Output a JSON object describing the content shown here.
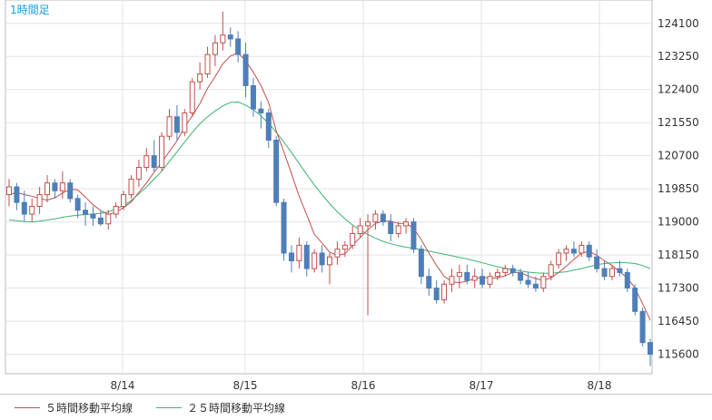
{
  "chart_data": {
    "type": "candlestick",
    "title": "1時間足",
    "x_labels": [
      "8/14",
      "8/15",
      "8/16",
      "8/17",
      "8/18"
    ],
    "y_ticks": [
      124100,
      123250,
      122400,
      121550,
      120700,
      119850,
      119000,
      118150,
      117300,
      116450,
      115600
    ],
    "ylim": [
      115100,
      124700
    ],
    "grid": true,
    "series": [
      {
        "name": "５時間移動平均線",
        "color": "#c0504d"
      },
      {
        "name": "２５時間移動平均線",
        "color": "#3cb371"
      }
    ],
    "colors": {
      "up": "#ffffff",
      "up_border": "#c0504d",
      "down": "#4f7fb8",
      "down_border": "#4f7fb8"
    },
    "candles": [
      [
        119700,
        120100,
        119400,
        119900
      ],
      [
        119900,
        120000,
        119300,
        119500
      ],
      [
        119500,
        119800,
        119000,
        119200
      ],
      [
        119200,
        119600,
        119000,
        119400
      ],
      [
        119400,
        119900,
        119200,
        119700
      ],
      [
        119700,
        120200,
        119500,
        120000
      ],
      [
        120000,
        120100,
        119600,
        119800
      ],
      [
        119800,
        120300,
        119600,
        120000
      ],
      [
        120000,
        120100,
        119500,
        119600
      ],
      [
        119600,
        119700,
        119100,
        119300
      ],
      [
        119300,
        119500,
        118900,
        119200
      ],
      [
        119200,
        119400,
        118900,
        119100
      ],
      [
        119100,
        119300,
        118900,
        118950
      ],
      [
        118950,
        119300,
        118800,
        119200
      ],
      [
        119200,
        119500,
        119100,
        119400
      ],
      [
        119400,
        119800,
        119300,
        119700
      ],
      [
        119700,
        120200,
        119600,
        120100
      ],
      [
        120100,
        120600,
        119900,
        120400
      ],
      [
        120400,
        120900,
        120300,
        120700
      ],
      [
        120700,
        121100,
        120300,
        120400
      ],
      [
        120400,
        121300,
        120300,
        121200
      ],
      [
        121200,
        121900,
        121100,
        121700
      ],
      [
        121700,
        122000,
        121100,
        121300
      ],
      [
        121300,
        121900,
        121200,
        121800
      ],
      [
        121800,
        122700,
        121700,
        122600
      ],
      [
        122600,
        123100,
        122400,
        122800
      ],
      [
        122800,
        123500,
        122700,
        123300
      ],
      [
        123300,
        123800,
        123000,
        123600
      ],
      [
        123600,
        124400,
        123400,
        123800
      ],
      [
        123800,
        124000,
        123500,
        123700
      ],
      [
        123700,
        123900,
        123100,
        123300
      ],
      [
        123300,
        123600,
        122200,
        122500
      ],
      [
        122500,
        122700,
        121700,
        121900
      ],
      [
        121900,
        122100,
        121400,
        121800
      ],
      [
        121800,
        121900,
        120900,
        121100
      ],
      [
        121100,
        121200,
        119400,
        119500
      ],
      [
        119500,
        119600,
        118000,
        118200
      ],
      [
        118200,
        118400,
        117700,
        118000
      ],
      [
        118000,
        118600,
        117800,
        118400
      ],
      [
        118400,
        118500,
        117600,
        117800
      ],
      [
        117800,
        118300,
        117700,
        118200
      ],
      [
        118200,
        118400,
        117700,
        117900
      ],
      [
        117900,
        118200,
        117400,
        118100
      ],
      [
        118100,
        118500,
        117900,
        118300
      ],
      [
        118300,
        118500,
        118100,
        118400
      ],
      [
        118400,
        118900,
        118300,
        118700
      ],
      [
        118700,
        119100,
        118600,
        118900
      ],
      [
        118900,
        119200,
        116600,
        119000
      ],
      [
        119000,
        119300,
        118800,
        119200
      ],
      [
        119200,
        119300,
        118900,
        119000
      ],
      [
        119000,
        119200,
        118500,
        118700
      ],
      [
        118700,
        119000,
        118600,
        118900
      ],
      [
        118900,
        119100,
        118700,
        119000
      ],
      [
        119000,
        119100,
        118200,
        118300
      ],
      [
        118300,
        118400,
        117400,
        117600
      ],
      [
        117600,
        117800,
        117100,
        117300
      ],
      [
        117300,
        117500,
        116900,
        117000
      ],
      [
        117000,
        117500,
        116900,
        117400
      ],
      [
        117400,
        117800,
        117200,
        117600
      ],
      [
        117600,
        117900,
        117300,
        117700
      ],
      [
        117700,
        117900,
        117400,
        117500
      ],
      [
        117500,
        117800,
        117300,
        117600
      ],
      [
        117600,
        117800,
        117300,
        117400
      ],
      [
        117400,
        117700,
        117300,
        117600
      ],
      [
        117600,
        117800,
        117500,
        117700
      ],
      [
        117700,
        117900,
        117600,
        117800
      ],
      [
        117800,
        117900,
        117600,
        117700
      ],
      [
        117700,
        117800,
        117400,
        117500
      ],
      [
        117500,
        117700,
        117300,
        117400
      ],
      [
        117400,
        117600,
        117200,
        117300
      ],
      [
        117300,
        117700,
        117200,
        117600
      ],
      [
        117600,
        118000,
        117500,
        117900
      ],
      [
        117900,
        118300,
        117800,
        118200
      ],
      [
        118200,
        118400,
        118000,
        118300
      ],
      [
        118300,
        118500,
        118100,
        118200
      ],
      [
        118200,
        118500,
        118100,
        118400
      ],
      [
        118400,
        118500,
        118000,
        118100
      ],
      [
        118100,
        118300,
        117700,
        117800
      ],
      [
        117800,
        118000,
        117500,
        117600
      ],
      [
        117600,
        117900,
        117500,
        117800
      ],
      [
        117800,
        118000,
        117600,
        117700
      ],
      [
        117700,
        117800,
        117200,
        117300
      ],
      [
        117300,
        117400,
        116600,
        116700
      ],
      [
        116700,
        116800,
        115800,
        115900
      ],
      [
        115900,
        116000,
        115300,
        115600
      ]
    ],
    "ma5": [
      119700,
      119760,
      119700,
      119660,
      119600,
      119560,
      119620,
      119740,
      119840,
      119820,
      119640,
      119440,
      119290,
      119190,
      119250,
      119370,
      119510,
      119760,
      120000,
      120280,
      120530,
      120810,
      121080,
      121440,
      121720,
      122040,
      122430,
      122730,
      123060,
      123260,
      123340,
      123140,
      122840,
      122500,
      122060,
      121330,
      120800,
      120240,
      119660,
      119180,
      118680,
      118460,
      118220,
      118140,
      118180,
      118400,
      118600,
      118800,
      118960,
      119020,
      119020,
      118960,
      118960,
      118840,
      118540,
      118200,
      117880,
      117600,
      117460,
      117440,
      117480,
      117540,
      117580,
      117560,
      117560,
      117620,
      117700,
      117700,
      117610,
      117540,
      117500,
      117560,
      117700,
      117860,
      118040,
      118200,
      118240,
      118140,
      118000,
      117880,
      117720,
      117560,
      117300,
      116900,
      116480
    ],
    "ma25": [
      119050,
      119030,
      119010,
      119000,
      119020,
      119050,
      119080,
      119120,
      119150,
      119170,
      119190,
      119200,
      119220,
      119260,
      119330,
      119420,
      119550,
      119720,
      119900,
      120100,
      120300,
      120550,
      120800,
      121050,
      121300,
      121520,
      121700,
      121850,
      121980,
      122070,
      122080,
      122000,
      121880,
      121720,
      121530,
      121300,
      121050,
      120780,
      120500,
      120220,
      119950,
      119700,
      119470,
      119260,
      119080,
      118920,
      118790,
      118680,
      118580,
      118500,
      118440,
      118390,
      118350,
      118320,
      118290,
      118250,
      118210,
      118170,
      118130,
      118090,
      118050,
      118000,
      117950,
      117900,
      117850,
      117810,
      117770,
      117740,
      117710,
      117690,
      117680,
      117680,
      117700,
      117720,
      117760,
      117800,
      117850,
      117900,
      117930,
      117950,
      117960,
      117950,
      117930,
      117880,
      117800
    ]
  },
  "legend": {
    "ma5_label": "５時間移動平均線",
    "ma25_label": "２５時間移動平均線"
  }
}
